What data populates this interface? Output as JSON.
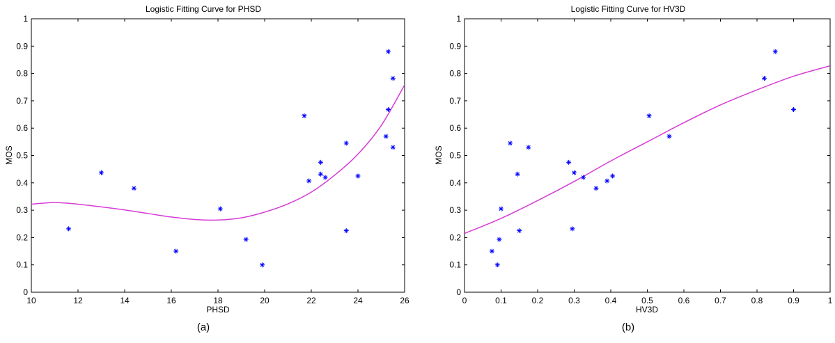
{
  "chart_data": [
    {
      "type": "scatter",
      "title": "Logistic Fitting Curve for PHSD",
      "xlabel": "PHSD",
      "ylabel": "MOS",
      "caption": "(a)",
      "xlim": [
        10,
        26
      ],
      "ylim": [
        0,
        1
      ],
      "xticks": [
        10,
        12,
        14,
        16,
        18,
        20,
        22,
        24,
        26
      ],
      "yticks": [
        0,
        0.1,
        0.2,
        0.3,
        0.4,
        0.5,
        0.6,
        0.7,
        0.8,
        0.9,
        1
      ],
      "grid": false,
      "colors": {
        "points": "#0000ff",
        "curve": "#d63cd6"
      },
      "points": [
        {
          "x": 11.6,
          "y": 0.232
        },
        {
          "x": 13.0,
          "y": 0.437
        },
        {
          "x": 14.4,
          "y": 0.38
        },
        {
          "x": 16.2,
          "y": 0.15
        },
        {
          "x": 18.1,
          "y": 0.305
        },
        {
          "x": 19.2,
          "y": 0.193
        },
        {
          "x": 19.9,
          "y": 0.1
        },
        {
          "x": 21.7,
          "y": 0.645
        },
        {
          "x": 21.9,
          "y": 0.407
        },
        {
          "x": 22.4,
          "y": 0.475
        },
        {
          "x": 22.4,
          "y": 0.432
        },
        {
          "x": 22.6,
          "y": 0.42
        },
        {
          "x": 23.5,
          "y": 0.545
        },
        {
          "x": 23.5,
          "y": 0.225
        },
        {
          "x": 24.0,
          "y": 0.425
        },
        {
          "x": 25.2,
          "y": 0.57
        },
        {
          "x": 25.3,
          "y": 0.668
        },
        {
          "x": 25.3,
          "y": 0.88
        },
        {
          "x": 25.5,
          "y": 0.782
        },
        {
          "x": 25.5,
          "y": 0.53
        }
      ],
      "curve": {
        "x": [
          10,
          11,
          12,
          13,
          14,
          15,
          16,
          17,
          18,
          19,
          20,
          21,
          22,
          23,
          24,
          25,
          26
        ],
        "y": [
          0.322,
          0.328,
          0.322,
          0.312,
          0.301,
          0.288,
          0.275,
          0.266,
          0.264,
          0.272,
          0.293,
          0.323,
          0.366,
          0.428,
          0.505,
          0.61,
          0.758
        ]
      }
    },
    {
      "type": "scatter",
      "title": "Logistic Fitting Curve for HV3D",
      "xlabel": "HV3D",
      "ylabel": "MOS",
      "caption": "(b)",
      "xlim": [
        0,
        1
      ],
      "ylim": [
        0,
        1
      ],
      "xticks": [
        0,
        0.1,
        0.2,
        0.3,
        0.4,
        0.5,
        0.6,
        0.7,
        0.8,
        0.9,
        1
      ],
      "yticks": [
        0,
        0.1,
        0.2,
        0.3,
        0.4,
        0.5,
        0.6,
        0.7,
        0.8,
        0.9,
        1
      ],
      "grid": false,
      "colors": {
        "points": "#0000ff",
        "curve": "#d63cd6"
      },
      "points": [
        {
          "x": 0.075,
          "y": 0.15
        },
        {
          "x": 0.09,
          "y": 0.1
        },
        {
          "x": 0.095,
          "y": 0.193
        },
        {
          "x": 0.1,
          "y": 0.305
        },
        {
          "x": 0.125,
          "y": 0.545
        },
        {
          "x": 0.145,
          "y": 0.432
        },
        {
          "x": 0.15,
          "y": 0.225
        },
        {
          "x": 0.175,
          "y": 0.53
        },
        {
          "x": 0.285,
          "y": 0.475
        },
        {
          "x": 0.295,
          "y": 0.232
        },
        {
          "x": 0.3,
          "y": 0.437
        },
        {
          "x": 0.325,
          "y": 0.42
        },
        {
          "x": 0.36,
          "y": 0.38
        },
        {
          "x": 0.39,
          "y": 0.407
        },
        {
          "x": 0.405,
          "y": 0.425
        },
        {
          "x": 0.505,
          "y": 0.645
        },
        {
          "x": 0.56,
          "y": 0.57
        },
        {
          "x": 0.82,
          "y": 0.782
        },
        {
          "x": 0.85,
          "y": 0.88
        },
        {
          "x": 0.9,
          "y": 0.668
        }
      ],
      "curve": {
        "x": [
          0,
          0.1,
          0.2,
          0.3,
          0.4,
          0.5,
          0.6,
          0.7,
          0.8,
          0.9,
          1
        ],
        "y": [
          0.215,
          0.27,
          0.335,
          0.405,
          0.48,
          0.55,
          0.62,
          0.685,
          0.74,
          0.79,
          0.828
        ]
      }
    }
  ]
}
